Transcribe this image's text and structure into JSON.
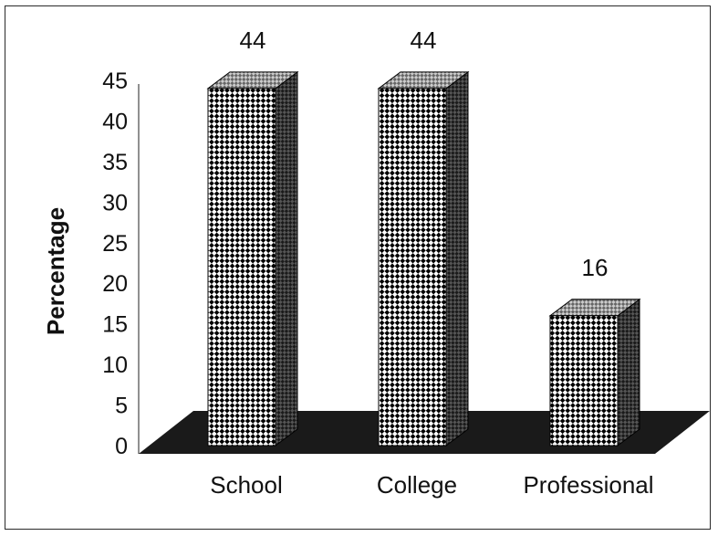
{
  "chart_data": {
    "type": "bar",
    "title": "",
    "xlabel": "",
    "ylabel": "Percentage",
    "categories": [
      "School",
      "College",
      "Professional"
    ],
    "values": [
      44,
      44,
      16
    ],
    "data_labels": [
      "44",
      "44",
      "16"
    ],
    "ylim": [
      0,
      45
    ],
    "yticks": [
      0,
      5,
      10,
      15,
      20,
      25,
      30,
      35,
      40,
      45
    ],
    "grid": false,
    "legend": "none",
    "style": "3d-bars-checkered",
    "colors": {
      "floor": "#1a1a1a",
      "bar_front": "#ffffff",
      "bar_pattern": "#000000",
      "bar_side": "#333333"
    }
  }
}
